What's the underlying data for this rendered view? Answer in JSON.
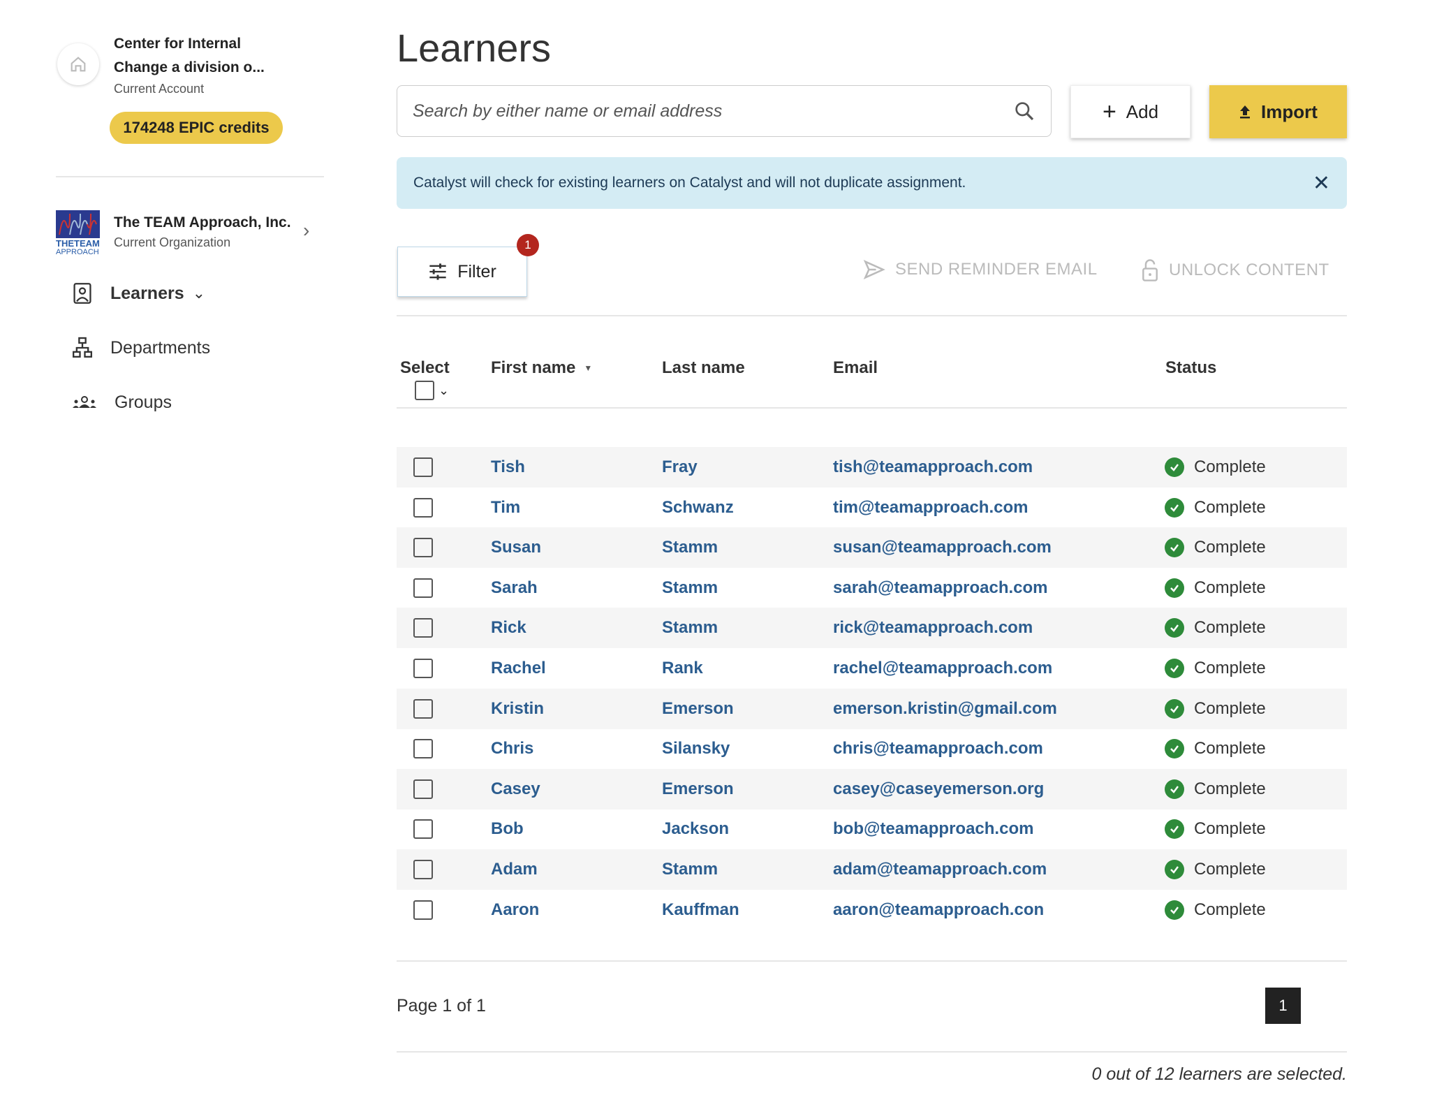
{
  "sidebar": {
    "account_line1": "Center for Internal",
    "account_line2": "Change a division o...",
    "account_sub": "Current Account",
    "credits": "174248 EPIC credits",
    "org_name": "The TEAM Approach, Inc.",
    "org_sub": "Current Organization",
    "logo_text": "THE TEAM APPROACH",
    "nav": [
      {
        "label": "Learners",
        "icon": "contact-card-icon",
        "active": true
      },
      {
        "label": "Departments",
        "icon": "org-chart-icon"
      },
      {
        "label": "Groups",
        "icon": "groups-icon"
      }
    ]
  },
  "main": {
    "title": "Learners",
    "search_placeholder": "Search by either name or email address",
    "add_label": "Add",
    "import_label": "Import",
    "banner": "Catalyst will check for existing learners on Catalyst and will not duplicate assignment.",
    "filter_label": "Filter",
    "filter_count": "1",
    "send_reminder": "SEND REMINDER EMAIL",
    "unlock": "UNLOCK CONTENT",
    "columns": [
      "Select",
      "First name",
      "Last name",
      "Email",
      "Status"
    ],
    "rows": [
      {
        "first": "Tish",
        "last": "Fray",
        "email": "tish@teamapproach.com",
        "status": "Complete"
      },
      {
        "first": "Tim",
        "last": "Schwanz",
        "email": "tim@teamapproach.com",
        "status": "Complete"
      },
      {
        "first": "Susan",
        "last": "Stamm",
        "email": "susan@teamapproach.com",
        "status": "Complete"
      },
      {
        "first": "Sarah",
        "last": "Stamm",
        "email": "sarah@teamapproach.com",
        "status": "Complete"
      },
      {
        "first": "Rick",
        "last": "Stamm",
        "email": "rick@teamapproach.com",
        "status": "Complete"
      },
      {
        "first": "Rachel",
        "last": "Rank",
        "email": "rachel@teamapproach.com",
        "status": "Complete"
      },
      {
        "first": "Kristin",
        "last": "Emerson",
        "email": "emerson.kristin@gmail.com",
        "status": "Complete"
      },
      {
        "first": "Chris",
        "last": "Silansky",
        "email": "chris@teamapproach.com",
        "status": "Complete"
      },
      {
        "first": "Casey",
        "last": "Emerson",
        "email": "casey@caseyemerson.org",
        "status": "Complete"
      },
      {
        "first": "Bob",
        "last": "Jackson",
        "email": "bob@teamapproach.com",
        "status": "Complete"
      },
      {
        "first": "Adam",
        "last": "Stamm",
        "email": "adam@teamapproach.com",
        "status": "Complete"
      },
      {
        "first": "Aaron",
        "last": "Kauffman",
        "email": "aaron@teamapproach.con",
        "status": "Complete"
      }
    ],
    "page_info": "Page 1 of 1",
    "current_page": "1",
    "selection_summary": "0 out of 12 learners are selected."
  },
  "colors": {
    "accent": "#ecc94b",
    "link": "#2c5d8f",
    "success": "#2e8b3a",
    "badge": "#b3261e",
    "banner": "#d4ecf4"
  }
}
